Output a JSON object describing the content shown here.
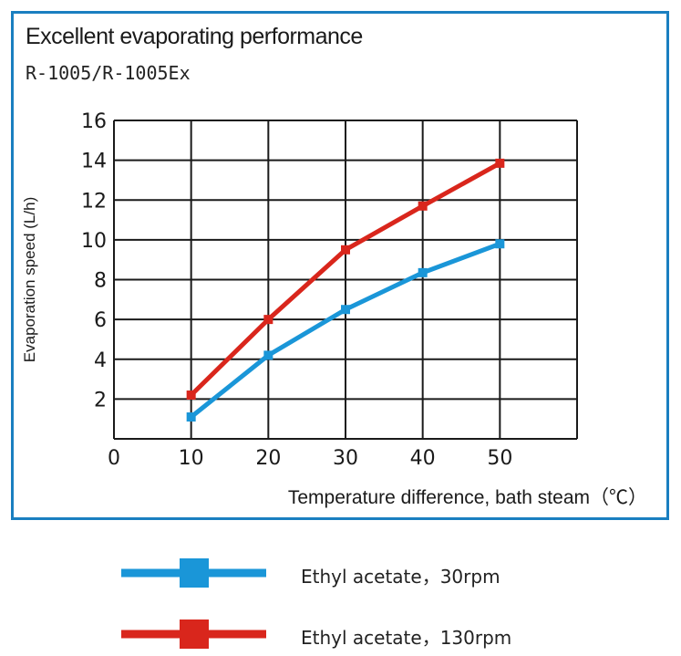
{
  "title": "Excellent evaporating performance",
  "subtitle": "R-1005/R-1005Ex",
  "chart_data": {
    "type": "line",
    "title": "Excellent evaporating performance",
    "subtitle": "R-1005/R-1005Ex",
    "xlabel": "Temperature difference, bath steam（℃）",
    "ylabel": "Evaporation speed (L/h)",
    "xlim": [
      0,
      60
    ],
    "ylim": [
      0,
      16
    ],
    "x_ticks": [
      "0",
      "10",
      "20",
      "30",
      "40",
      "50"
    ],
    "y_ticks": [
      "2",
      "4",
      "6",
      "8",
      "10",
      "12",
      "14",
      "16"
    ],
    "grid": true,
    "legend_position": "bottom",
    "x": [
      10,
      20,
      30,
      40,
      50
    ],
    "series": [
      {
        "name": "Ethyl acetate，30rpm",
        "color": "#1a96d8",
        "values": [
          1.1,
          4.2,
          6.5,
          8.35,
          9.8
        ]
      },
      {
        "name": "Ethyl acetate，130rpm",
        "color": "#d9261c",
        "values": [
          2.2,
          6.0,
          9.5,
          11.7,
          13.85
        ]
      }
    ]
  }
}
